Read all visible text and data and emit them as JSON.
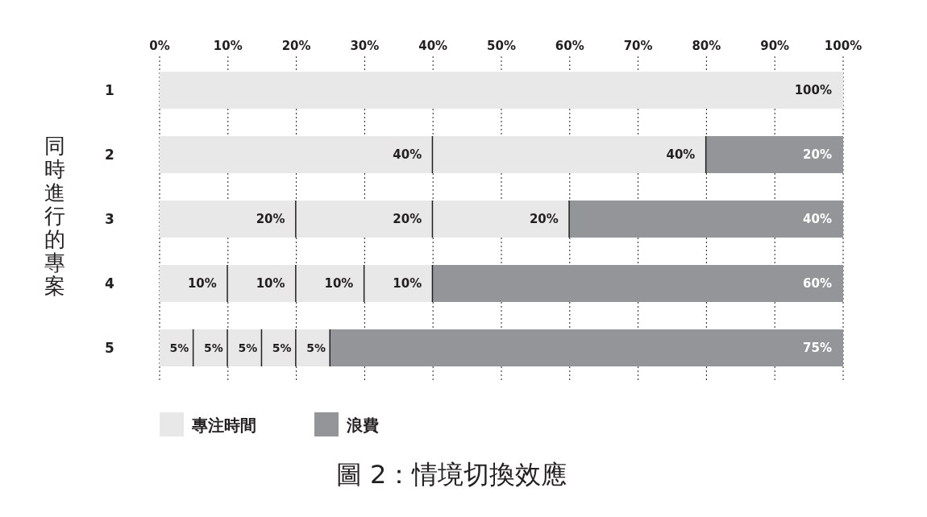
{
  "chart_data": {
    "type": "bar",
    "orientation": "horizontal",
    "stacked": true,
    "title": "圖 2：情境切換效應",
    "ylabel": "同時進行的專案",
    "categories": [
      "1",
      "2",
      "3",
      "4",
      "5"
    ],
    "series": [
      {
        "name": "專注時間",
        "color": "#e8e8e9",
        "values": [
          100,
          40,
          20,
          10,
          5
        ],
        "value_labels": [
          "100%",
          "40%",
          "20%",
          "10%",
          "5%"
        ]
      },
      {
        "color": "#e8e8e9",
        "values": [
          null,
          40,
          20,
          10,
          5
        ],
        "value_labels": [
          null,
          "40%",
          "20%",
          "10%",
          "5%"
        ]
      },
      {
        "color": "#e8e8e9",
        "values": [
          null,
          null,
          20,
          10,
          5
        ],
        "value_labels": [
          null,
          null,
          "20%",
          "10%",
          "5%"
        ]
      },
      {
        "color": "#e8e8e9",
        "values": [
          null,
          null,
          null,
          10,
          5
        ],
        "value_labels": [
          null,
          null,
          null,
          "10%",
          "5%"
        ]
      },
      {
        "color": "#e8e8e9",
        "values": [
          null,
          null,
          null,
          null,
          5
        ],
        "value_labels": [
          null,
          null,
          null,
          null,
          "5%"
        ]
      },
      {
        "name": "浪費",
        "color": "#939598",
        "values": [
          null,
          20,
          40,
          60,
          75
        ],
        "value_labels": [
          null,
          "20%",
          "40%",
          "60%",
          "75%"
        ]
      }
    ],
    "xlim": [
      0,
      100
    ],
    "xticks": [
      {
        "value": 0,
        "label": "0%"
      },
      {
        "value": 10,
        "label": "10%"
      },
      {
        "value": 20,
        "label": "20%"
      },
      {
        "value": 30,
        "label": "30%"
      },
      {
        "value": 40,
        "label": "40%"
      },
      {
        "value": 50,
        "label": "50%"
      },
      {
        "value": 60,
        "label": "60%"
      },
      {
        "value": 70,
        "label": "70%"
      },
      {
        "value": 80,
        "label": "80%"
      },
      {
        "value": 90,
        "label": "90%"
      },
      {
        "value": 100,
        "label": "100%"
      }
    ],
    "grid": "x",
    "legend": "bottom left"
  }
}
